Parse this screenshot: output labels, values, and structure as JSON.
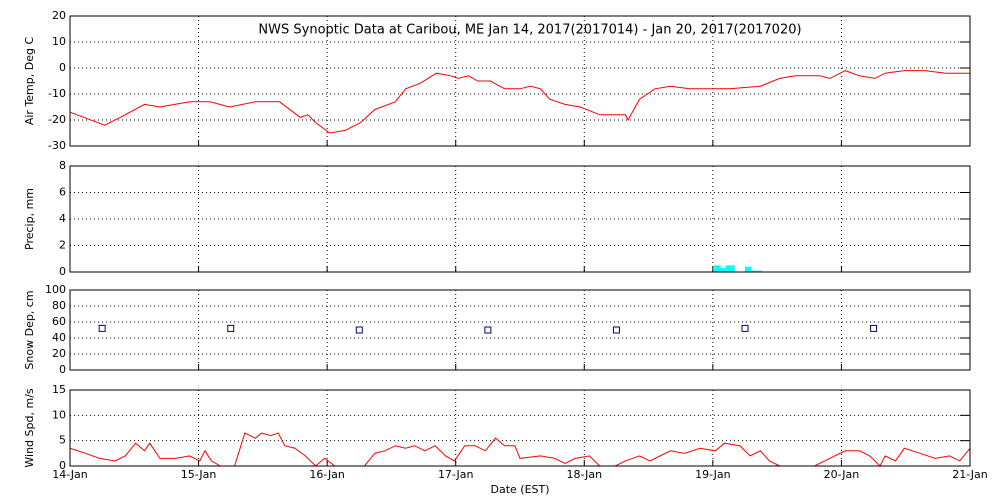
{
  "chart_data": [
    {
      "type": "line",
      "title": "NWS Synoptic Data at Caribou, ME   Jan 14, 2017(2017014) - Jan 20, 2017(2017020)",
      "ylabel": "Air Temp, Deg C",
      "ylim": [
        -30,
        20
      ],
      "yticks": [
        -30,
        -20,
        -10,
        0,
        10,
        20
      ],
      "grid": true,
      "color": "#ff0000",
      "x": [
        0,
        0.27,
        0.39,
        0.58,
        0.7,
        0.93,
        1.09,
        1.24,
        1.44,
        1.63,
        1.79,
        1.85,
        1.91,
        2.02,
        2.14,
        2.26,
        2.37,
        2.53,
        2.61,
        2.72,
        2.85,
        2.96,
        3.02,
        3.1,
        3.17,
        3.27,
        3.38,
        3.5,
        3.58,
        3.66,
        3.73,
        3.85,
        3.97,
        4.12,
        4.24,
        4.32,
        4.34,
        4.43,
        4.55,
        4.67,
        4.82,
        5.13,
        5.37,
        5.52,
        5.64,
        5.83,
        5.91,
        6.03,
        6.14,
        6.26,
        6.34,
        6.49,
        6.65,
        6.81,
        7.0
      ],
      "values": [
        -17,
        -22,
        -19,
        -14,
        -15,
        -13,
        -13,
        -15,
        -13,
        -13,
        -19,
        -18,
        -21,
        -25,
        -24,
        -21,
        -16,
        -13,
        -8,
        -6,
        -2,
        -3,
        -4,
        -3,
        -5,
        -5,
        -8,
        -8,
        -7,
        -8,
        -12,
        -14,
        -15,
        -18,
        -18,
        -18,
        -20,
        -12,
        -8,
        -7,
        -8,
        -8,
        -7,
        -4,
        -3,
        -3,
        -4,
        -1,
        -3,
        -4,
        -2,
        -1,
        -1,
        -2,
        -2
      ]
    },
    {
      "type": "histogram",
      "ylabel": "Precip, mm",
      "ylim": [
        0,
        8
      ],
      "yticks": [
        0,
        2,
        4,
        6,
        8
      ],
      "grid": true,
      "color": "#00ffff",
      "bins": [
        5.01,
        5.06,
        5.1,
        5.17,
        5.25,
        5.3,
        5.38
      ],
      "values": [
        0.5,
        0.3,
        0.5,
        0,
        0.4,
        0.1
      ]
    },
    {
      "type": "scatter",
      "ylabel": "Snow Dep, cm",
      "ylim": [
        0,
        100
      ],
      "yticks": [
        0,
        20,
        40,
        60,
        80,
        100
      ],
      "grid": true,
      "color": "#000080",
      "x": [
        0.25,
        1.25,
        2.25,
        3.25,
        4.25,
        5.25,
        6.25
      ],
      "values": [
        52,
        52,
        50,
        50,
        50,
        52,
        52
      ]
    },
    {
      "type": "line",
      "ylabel": "Wind Spd, m/s",
      "xlabel": "Date (EST)",
      "ylim": [
        0,
        15
      ],
      "yticks": [
        0,
        5,
        10,
        15
      ],
      "grid": true,
      "color": "#ff0000",
      "xlim": [
        0,
        7
      ],
      "xticks": [
        {
          "value": 0,
          "label": "14-Jan"
        },
        {
          "value": 1,
          "label": "15-Jan"
        },
        {
          "value": 2,
          "label": "16-Jan"
        },
        {
          "value": 3,
          "label": "17-Jan"
        },
        {
          "value": 4,
          "label": "18-Jan"
        },
        {
          "value": 5,
          "label": "19-Jan"
        },
        {
          "value": 6,
          "label": "20-Jan"
        },
        {
          "value": 7,
          "label": "21-Jan"
        }
      ],
      "x": [
        0,
        0.12,
        0.23,
        0.35,
        0.43,
        0.51,
        0.58,
        0.62,
        0.7,
        0.82,
        0.93,
        1.01,
        1.05,
        1.1,
        1.17,
        1.28,
        1.36,
        1.44,
        1.49,
        1.56,
        1.62,
        1.67,
        1.75,
        1.83,
        1.91,
        1.98,
        2.06,
        2.29,
        2.37,
        2.45,
        2.53,
        2.61,
        2.68,
        2.76,
        2.84,
        2.92,
        2.99,
        3.07,
        3.15,
        3.23,
        3.31,
        3.38,
        3.46,
        3.5,
        3.66,
        3.77,
        3.85,
        3.93,
        4.04,
        4.12,
        4.24,
        4.32,
        4.43,
        4.51,
        4.59,
        4.67,
        4.78,
        4.9,
        5.02,
        5.09,
        5.21,
        5.29,
        5.37,
        5.44,
        5.52,
        5.68,
        5.79,
        5.87,
        6.03,
        6.14,
        6.22,
        6.3,
        6.34,
        6.42,
        6.49,
        6.61,
        6.73,
        6.84,
        6.92,
        7.0
      ],
      "values": [
        3.5,
        2.5,
        1.5,
        1,
        2,
        4.5,
        3,
        4.5,
        1.5,
        1.5,
        2,
        1,
        3,
        1,
        0,
        0,
        6.5,
        5.5,
        6.5,
        6,
        6.5,
        4,
        3.5,
        2,
        0,
        1.5,
        0,
        0,
        2.5,
        3,
        4,
        3.5,
        4,
        3,
        4,
        2,
        1,
        4,
        4,
        3,
        5.5,
        4,
        4,
        1.5,
        2,
        1.5,
        0.5,
        1.5,
        2,
        0,
        0,
        1,
        2,
        1,
        2,
        3,
        2.5,
        3.5,
        3,
        4.5,
        4,
        2,
        3,
        1,
        0,
        0,
        0,
        1,
        3,
        3,
        2,
        0,
        2,
        1,
        3.5,
        2.5,
        1.5,
        2,
        1,
        3.5
      ]
    }
  ]
}
